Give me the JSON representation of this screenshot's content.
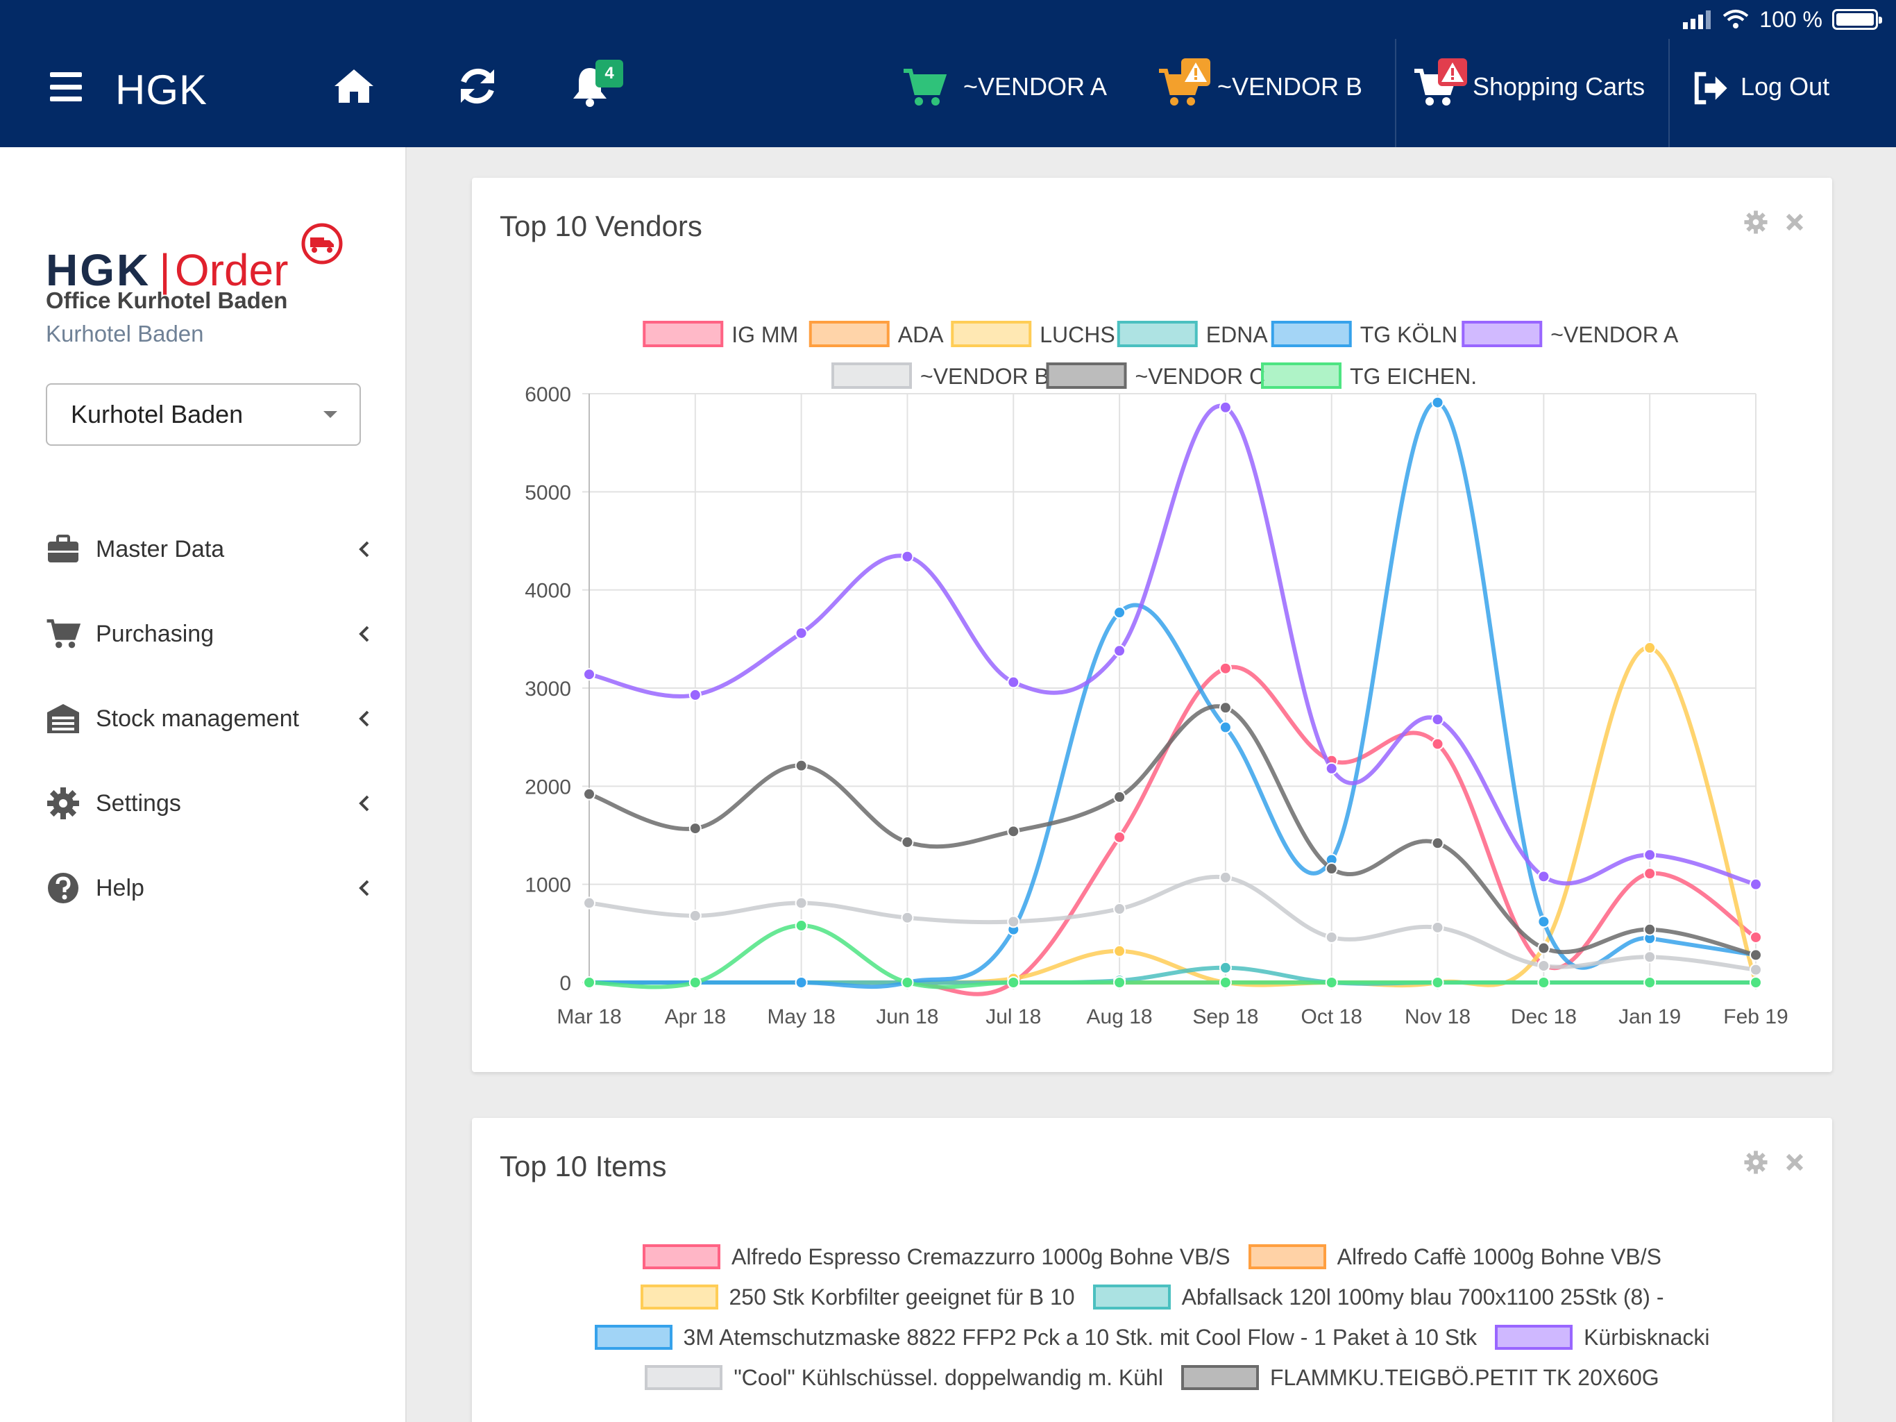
{
  "status": {
    "battery_text": "100 %"
  },
  "header": {
    "brand": "HGK",
    "notification_count": "4",
    "cart_vendor_a": "~VENDOR A",
    "cart_vendor_b": "~VENDOR B",
    "shopping_carts": "Shopping Carts",
    "logout": "Log Out"
  },
  "sidebar": {
    "logo_left": "HGK",
    "logo_right": "Order",
    "office": "Office Kurhotel Baden",
    "hotel": "Kurhotel Baden",
    "select_value": "Kurhotel Baden",
    "items": [
      {
        "label": "Master Data",
        "icon": "briefcase-icon"
      },
      {
        "label": "Purchasing",
        "icon": "cart-icon"
      },
      {
        "label": "Stock management",
        "icon": "warehouse-icon"
      },
      {
        "label": "Settings",
        "icon": "gear-icon"
      },
      {
        "label": "Help",
        "icon": "question-icon"
      }
    ]
  },
  "panels": {
    "vendors_title": "Top 10 Vendors",
    "items_title": "Top 10 Items"
  },
  "chart_data": {
    "type": "line",
    "title": "Top 10 Vendors",
    "categories": [
      "Mar 18",
      "Apr 18",
      "May 18",
      "Jun 18",
      "Jul 18",
      "Aug 18",
      "Sep 18",
      "Oct 18",
      "Nov 18",
      "Dec 18",
      "Jan 19",
      "Feb 19"
    ],
    "ylim": [
      0,
      6000
    ],
    "yticks": [
      0,
      1000,
      2000,
      3000,
      4000,
      5000,
      6000
    ],
    "grid": true,
    "legend_position": "top",
    "series": [
      {
        "name": "IG MM",
        "color": "#ff6384",
        "values": [
          0,
          0,
          0,
          0,
          0,
          1480,
          3200,
          2260,
          2430,
          180,
          1110,
          460
        ]
      },
      {
        "name": "ADA",
        "color": "#ff9f40",
        "values": [
          0,
          0,
          0,
          0,
          0,
          0,
          0,
          0,
          0,
          0,
          0,
          0
        ]
      },
      {
        "name": "LUCHS",
        "color": "#ffcd56",
        "values": [
          0,
          0,
          0,
          0,
          40,
          320,
          0,
          0,
          0,
          360,
          3410,
          0
        ]
      },
      {
        "name": "EDNA",
        "color": "#4bc0c0",
        "values": [
          0,
          0,
          0,
          0,
          0,
          20,
          150,
          0,
          0,
          0,
          0,
          0
        ]
      },
      {
        "name": "TG KÖLN",
        "color": "#36a2eb",
        "values": [
          0,
          0,
          0,
          0,
          540,
          3770,
          2600,
          1250,
          5910,
          620,
          450,
          280
        ]
      },
      {
        "name": "~VENDOR A",
        "color": "#9966ff",
        "values": [
          3140,
          2930,
          3560,
          4340,
          3060,
          3380,
          5860,
          2180,
          2680,
          1080,
          1300,
          1000
        ]
      },
      {
        "name": "~VENDOR B",
        "color": "#c9cbcf",
        "values": [
          810,
          680,
          810,
          660,
          620,
          750,
          1070,
          460,
          560,
          170,
          260,
          130
        ]
      },
      {
        "name": "~VENDOR C",
        "color": "#6b6b6b",
        "values": [
          1920,
          1570,
          2210,
          1430,
          1540,
          1890,
          2800,
          1160,
          1420,
          350,
          540,
          280
        ]
      },
      {
        "name": "TG EICHEN.",
        "color": "#4ee482",
        "values": [
          0,
          0,
          580,
          0,
          0,
          0,
          0,
          0,
          0,
          0,
          0,
          0
        ]
      }
    ]
  },
  "items_legend": [
    {
      "name": "Alfredo Espresso Cremazzurro 1000g Bohne VB/S",
      "color": "#ff6384"
    },
    {
      "name": "Alfredo Caffè 1000g Bohne VB/S",
      "color": "#ff9f40"
    },
    {
      "name": "250 Stk Korbfilter geeignet für B 10",
      "color": "#ffcd56"
    },
    {
      "name": "Abfallsack 120l 100my blau 700x1100 25Stk (8) -",
      "color": "#4bc0c0"
    },
    {
      "name": "3M Atemschutzmaske 8822 FFP2 Pck a 10 Stk. mit Cool Flow - 1 Paket à 10 Stk",
      "color": "#36a2eb"
    },
    {
      "name": "Kürbisknacki",
      "color": "#9966ff"
    },
    {
      "name": "\"Cool\" Kühlschüssel. doppelwandig m. Kühl",
      "color": "#c9cbcf"
    },
    {
      "name": "FLAMMKU.TEIGBÖ.PETIT TK 20X60G",
      "color": "#6b6b6b"
    }
  ]
}
